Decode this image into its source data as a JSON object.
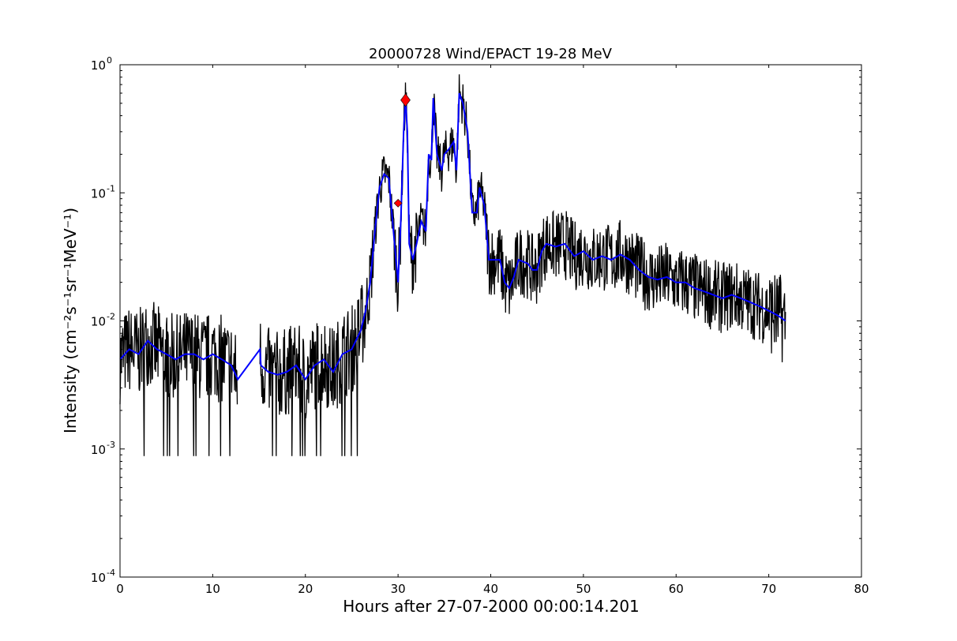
{
  "chart_data": {
    "type": "line",
    "title": "20000728 Wind/EPACT 19-28 MeV",
    "xlabel": "Hours after 27-07-2000 00:00:14.201",
    "ylabel": "Intensity (cm⁻²s⁻¹sr⁻¹MeV⁻¹)",
    "xlim": [
      0,
      80
    ],
    "ylim": [
      0.0001,
      1
    ],
    "yscale": "log",
    "grid": false,
    "xticks": [
      "0",
      "10",
      "20",
      "30",
      "40",
      "50",
      "60",
      "70",
      "80"
    ],
    "yticks": [
      {
        "base": "10",
        "exp": "-4"
      },
      {
        "base": "10",
        "exp": "-3"
      },
      {
        "base": "10",
        "exp": "-2"
      },
      {
        "base": "10",
        "exp": "-1"
      },
      {
        "base": "10",
        "exp": "0"
      }
    ],
    "colors": {
      "raw": "#000000",
      "smoothed": "#0000ff",
      "markers": "#ff0000"
    },
    "series": [
      {
        "style": "smoothed",
        "x": [
          0,
          1,
          2,
          3,
          4,
          5,
          6,
          7,
          8,
          9,
          10,
          11,
          12,
          12.7,
          15.1,
          15.2,
          16,
          17,
          18,
          19,
          20,
          21,
          22,
          23,
          24,
          25,
          26,
          26.5,
          27,
          27.5,
          28,
          28.5,
          29,
          29.5,
          30,
          30.3,
          30.6,
          30.8,
          31,
          31.2,
          31.6,
          32,
          32.5,
          33,
          33.3,
          33.6,
          33.8,
          34.2,
          34.7,
          35,
          35.5,
          36,
          36.3,
          36.6,
          37,
          37.5,
          38,
          38.5,
          38.8,
          39.3,
          39.8,
          40.5,
          41,
          41.5,
          42,
          42.5,
          43,
          44,
          44.5,
          45,
          45.5,
          46,
          47,
          48,
          49,
          50,
          51,
          52,
          53,
          54,
          55,
          56,
          57,
          58,
          59,
          60,
          61,
          62,
          63,
          64,
          65,
          66,
          67,
          68,
          69,
          70,
          71,
          71.8
        ],
        "y": [
          0.005,
          0.006,
          0.0055,
          0.007,
          0.006,
          0.0055,
          0.005,
          0.0055,
          0.0055,
          0.005,
          0.0055,
          0.005,
          0.0045,
          0.0035,
          0.006,
          0.0045,
          0.004,
          0.0038,
          0.004,
          0.0045,
          0.0035,
          0.0045,
          0.005,
          0.004,
          0.0055,
          0.006,
          0.0085,
          0.012,
          0.02,
          0.05,
          0.11,
          0.14,
          0.13,
          0.05,
          0.02,
          0.06,
          0.3,
          0.55,
          0.3,
          0.04,
          0.03,
          0.04,
          0.06,
          0.05,
          0.2,
          0.18,
          0.55,
          0.2,
          0.15,
          0.2,
          0.22,
          0.25,
          0.15,
          0.6,
          0.5,
          0.3,
          0.07,
          0.07,
          0.11,
          0.08,
          0.03,
          0.03,
          0.03,
          0.02,
          0.018,
          0.022,
          0.03,
          0.028,
          0.025,
          0.025,
          0.035,
          0.04,
          0.038,
          0.04,
          0.032,
          0.035,
          0.03,
          0.032,
          0.03,
          0.033,
          0.03,
          0.025,
          0.022,
          0.021,
          0.022,
          0.02,
          0.02,
          0.018,
          0.017,
          0.016,
          0.015,
          0.016,
          0.015,
          0.014,
          0.013,
          0.012,
          0.011,
          0.01
        ]
      }
    ],
    "markers": [
      {
        "x": 30.8,
        "y": 0.53,
        "shape": "diamond",
        "size": "large"
      },
      {
        "x": 30.0,
        "y": 0.083,
        "shape": "diamond",
        "size": "small"
      }
    ]
  }
}
